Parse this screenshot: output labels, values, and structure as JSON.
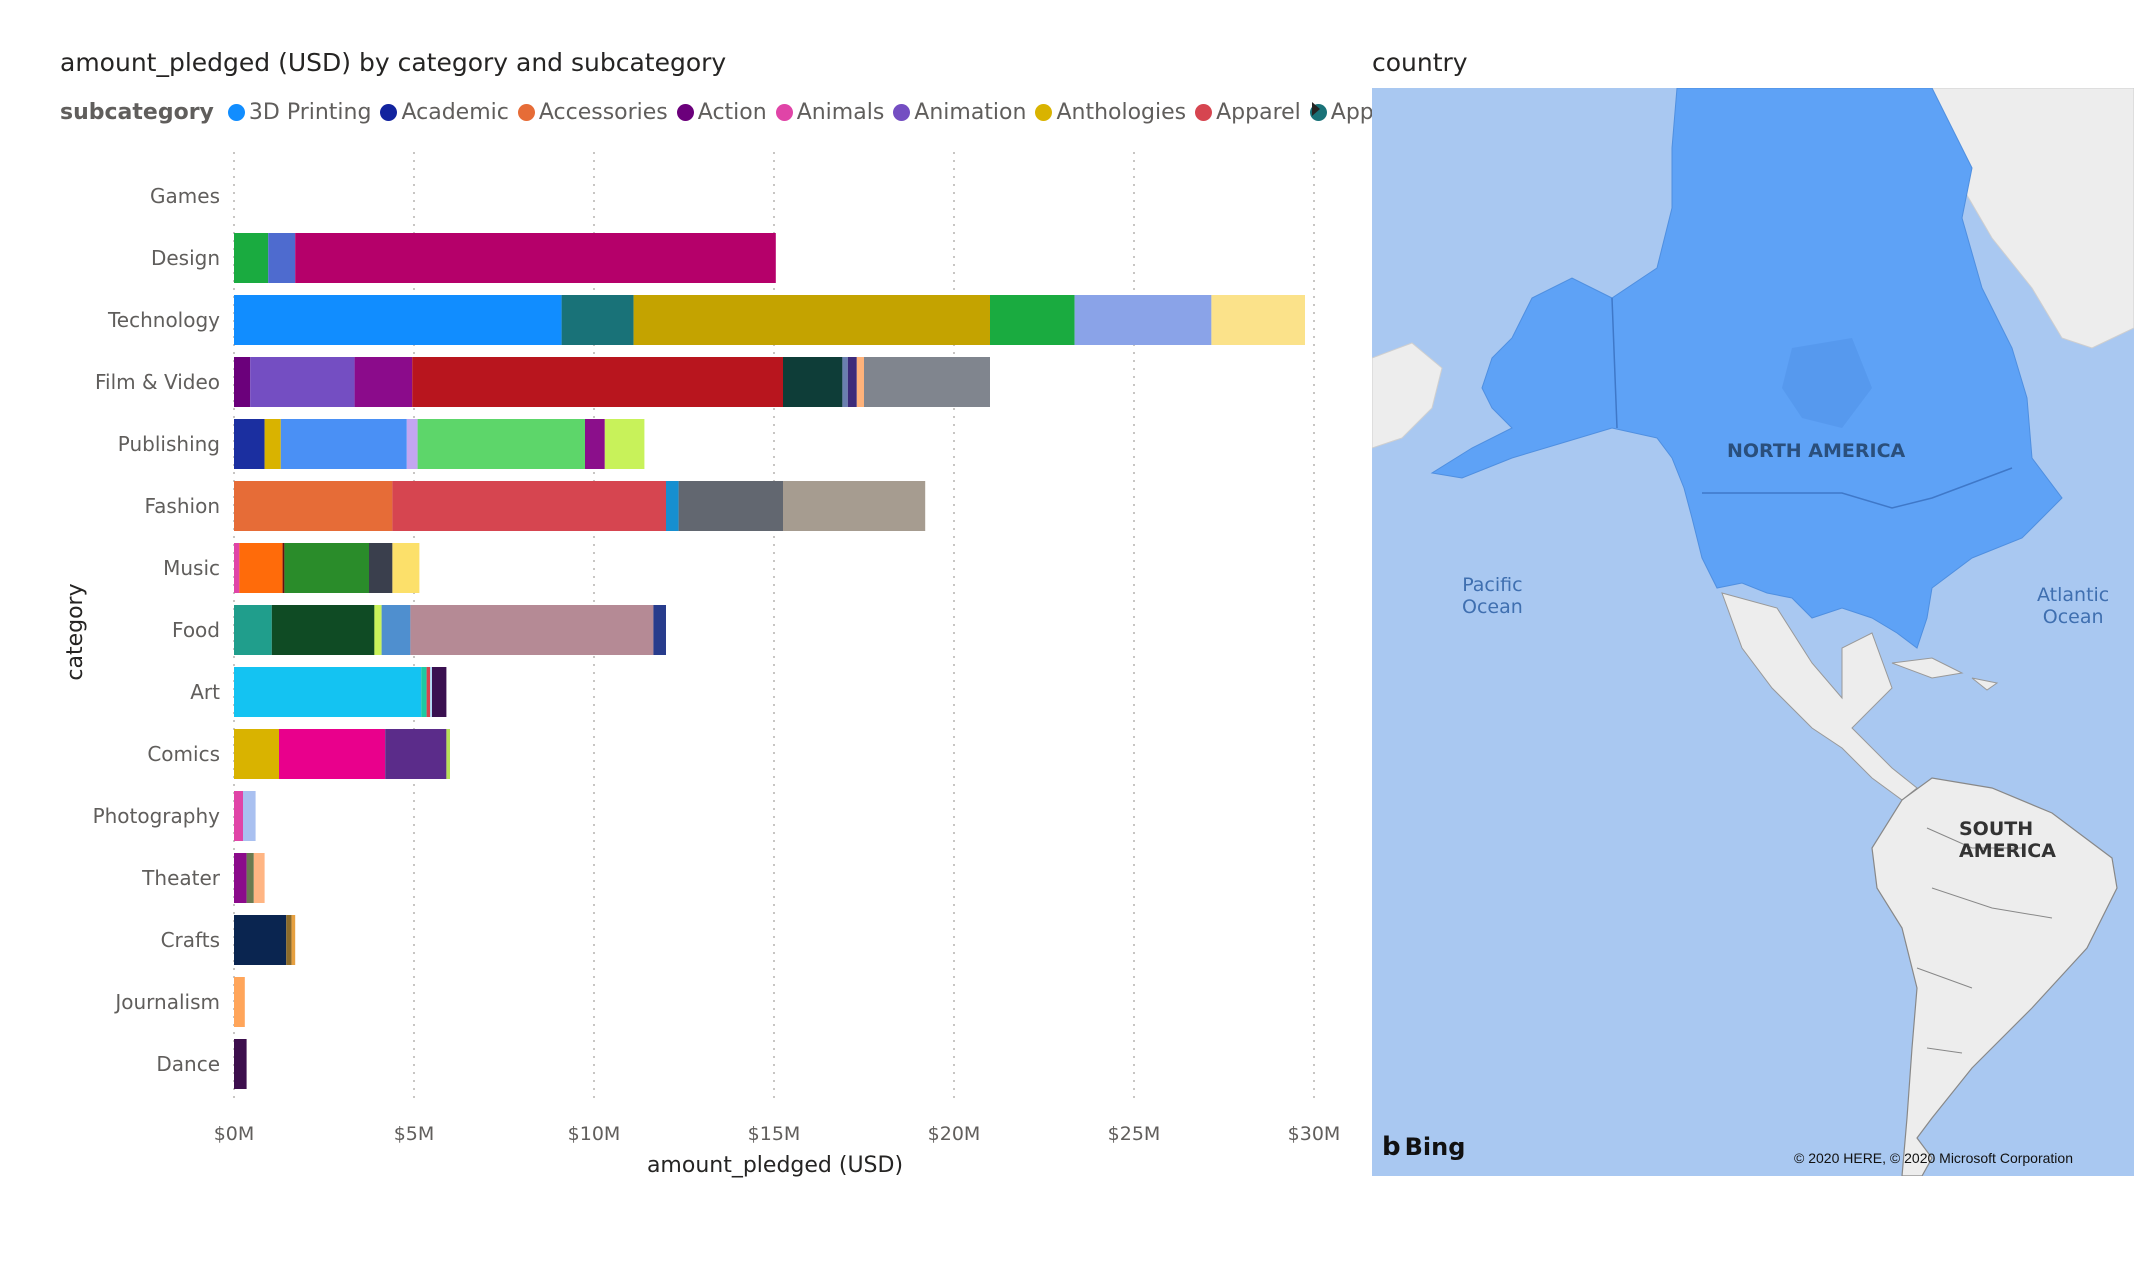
{
  "chart_data": {
    "type": "bar",
    "orientation": "horizontal",
    "stacked": true,
    "title": "amount_pledged (USD) by category and subcategory",
    "xlabel": "amount_pledged (USD)",
    "ylabel": "category",
    "xlim": [
      0,
      30
    ],
    "x_unit": "millions USD",
    "x_ticks": [
      "$0M",
      "$5M",
      "$10M",
      "$15M",
      "$20M",
      "$25M",
      "$30M"
    ],
    "grid": "vertical dotted",
    "legend": {
      "title": "subcategory",
      "position": "top",
      "items": [
        {
          "name": "3D Printing",
          "color": "#118DFF"
        },
        {
          "name": "Academic",
          "color": "#12239E"
        },
        {
          "name": "Accessories",
          "color": "#E66C37"
        },
        {
          "name": "Action",
          "color": "#6B007B"
        },
        {
          "name": "Animals",
          "color": "#E044A7"
        },
        {
          "name": "Animation",
          "color": "#744EC2"
        },
        {
          "name": "Anthologies",
          "color": "#D9B300"
        },
        {
          "name": "Apparel",
          "color": "#D64550"
        },
        {
          "name": "Apps",
          "color": "#197278"
        }
      ]
    },
    "categories": [
      "Games",
      "Design",
      "Technology",
      "Film & Video",
      "Publishing",
      "Fashion",
      "Music",
      "Food",
      "Art",
      "Comics",
      "Photography",
      "Theater",
      "Crafts",
      "Journalism",
      "Dance"
    ],
    "stacks": [
      [],
      [
        {
          "v": 0.95,
          "c": "#1AAB40"
        },
        {
          "v": 0.75,
          "c": "#4E6BCF"
        },
        {
          "v": 13.35,
          "c": "#B5006A"
        }
      ],
      [
        {
          "v": 9.1,
          "c": "#118DFF"
        },
        {
          "v": 2.0,
          "c": "#197278"
        },
        {
          "v": 9.9,
          "c": "#C4A300"
        },
        {
          "v": 2.35,
          "c": "#1AAB40"
        },
        {
          "v": 3.8,
          "c": "#8AA3E8"
        },
        {
          "v": 2.6,
          "c": "#FBE28A"
        }
      ],
      [
        {
          "v": 0.45,
          "c": "#6B007B"
        },
        {
          "v": 2.9,
          "c": "#744EC2"
        },
        {
          "v": 1.6,
          "c": "#8B0B8B"
        },
        {
          "v": 10.3,
          "c": "#B8151E"
        },
        {
          "v": 1.65,
          "c": "#0E3D38"
        },
        {
          "v": 0.15,
          "c": "#6A7FB0"
        },
        {
          "v": 0.25,
          "c": "#3D2B7A"
        },
        {
          "v": 0.2,
          "c": "#FFB27A"
        },
        {
          "v": 3.5,
          "c": "#80858E"
        }
      ],
      [
        {
          "v": 0.85,
          "c": "#1B2FA0"
        },
        {
          "v": 0.45,
          "c": "#D9B300"
        },
        {
          "v": 3.5,
          "c": "#4A90F5"
        },
        {
          "v": 0.3,
          "c": "#C3A6F0"
        },
        {
          "v": 4.65,
          "c": "#5DD66A"
        },
        {
          "v": 0.55,
          "c": "#8B0F8B"
        },
        {
          "v": 1.1,
          "c": "#C8F25A"
        }
      ],
      [
        {
          "v": 4.4,
          "c": "#E66C37"
        },
        {
          "v": 7.6,
          "c": "#D64550"
        },
        {
          "v": 0.35,
          "c": "#168FD0"
        },
        {
          "v": 2.9,
          "c": "#626770"
        },
        {
          "v": 3.95,
          "c": "#A69C90"
        }
      ],
      [
        {
          "v": 0.15,
          "c": "#E044A7"
        },
        {
          "v": 1.2,
          "c": "#FF6B0A"
        },
        {
          "v": 0.05,
          "c": "#6A0D0D"
        },
        {
          "v": 2.35,
          "c": "#2A8C2A"
        },
        {
          "v": 0.65,
          "c": "#3A3F4D"
        },
        {
          "v": 0.75,
          "c": "#FCE06A"
        }
      ],
      [
        {
          "v": 1.05,
          "c": "#209E8C"
        },
        {
          "v": 2.85,
          "c": "#0F4B24"
        },
        {
          "v": 0.2,
          "c": "#C9F25A"
        },
        {
          "v": 0.8,
          "c": "#4F8FCF"
        },
        {
          "v": 6.75,
          "c": "#B58A95"
        },
        {
          "v": 0.35,
          "c": "#283C8C"
        }
      ],
      [
        {
          "v": 5.2,
          "c": "#14C3F2"
        },
        {
          "v": 0.15,
          "c": "#1DC9A3"
        },
        {
          "v": 0.1,
          "c": "#D64550"
        },
        {
          "v": 0.05,
          "c": "#B0D9F5"
        },
        {
          "v": 0.4,
          "c": "#3A1050"
        }
      ],
      [
        {
          "v": 1.25,
          "c": "#D9B300"
        },
        {
          "v": 2.95,
          "c": "#E9008C"
        },
        {
          "v": 1.7,
          "c": "#5B2C8A"
        },
        {
          "v": 0.1,
          "c": "#B8E05A"
        }
      ],
      [
        {
          "v": 0.25,
          "c": "#E044A7"
        },
        {
          "v": 0.35,
          "c": "#A9C0F0"
        }
      ],
      [
        {
          "v": 0.35,
          "c": "#8B0B8B"
        },
        {
          "v": 0.2,
          "c": "#6A7A50"
        },
        {
          "v": 0.3,
          "c": "#FFB583"
        }
      ],
      [
        {
          "v": 1.45,
          "c": "#0A2550"
        },
        {
          "v": 0.15,
          "c": "#8A6A2A"
        },
        {
          "v": 0.1,
          "c": "#E6A040"
        }
      ],
      [
        {
          "v": 0.3,
          "c": "#FFA55A"
        }
      ],
      [
        {
          "v": 0.35,
          "c": "#3D0F4D"
        }
      ]
    ]
  },
  "map": {
    "title": "country",
    "labels": {
      "north_america": "NORTH AMERICA",
      "south_america": "SOUTH AMERICA",
      "pacific_line1": "Pacific",
      "pacific_line2": "Ocean",
      "atlantic_line1": "Atlantic",
      "atlantic_line2": "Ocean"
    },
    "brand": "Bing",
    "attribution": "© 2020 HERE, © 2020 Microsoft Corporation",
    "colors": {
      "water": "#A9C8F1",
      "land": "#EDEDED",
      "highlight": "#5EA2F6"
    }
  }
}
